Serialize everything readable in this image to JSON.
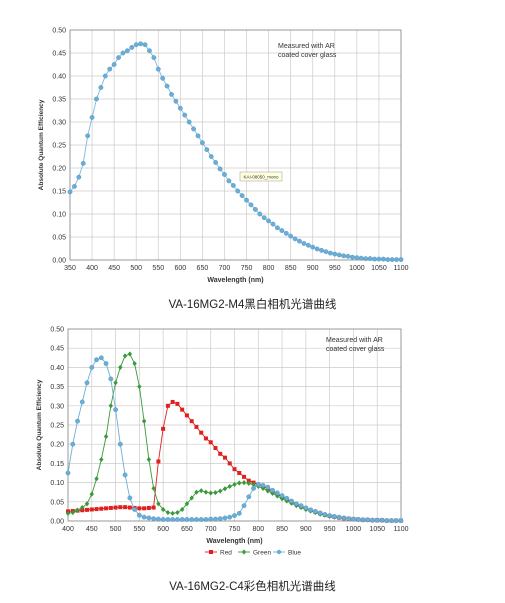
{
  "captions": [
    "VA-16MG2-M4黑白相机光谱曲线",
    "VA-16MG2-C4彩色相机光谱曲线"
  ],
  "colors": {
    "red": "#e02020",
    "green": "#3a9a3a",
    "blue": "#6aaed6",
    "grid": "#cccccc",
    "line": "#7fb6dd"
  },
  "chart_data": [
    {
      "type": "line",
      "title": "",
      "xlabel": "Wavelength (nm)",
      "ylabel": "Absolute Quantum Efficiency",
      "xlim": [
        350,
        1100
      ],
      "ylim": [
        0,
        0.5
      ],
      "xticks": [
        "350",
        "400",
        "450",
        "500",
        "550",
        "600",
        "650",
        "700",
        "750",
        "800",
        "850",
        "900",
        "950",
        "1000",
        "1050",
        "1100"
      ],
      "yticks": [
        "0.00",
        "0.05",
        "0.10",
        "0.15",
        "0.20",
        "0.25",
        "0.30",
        "0.35",
        "0.40",
        "0.45",
        "0.50"
      ],
      "grid": true,
      "annotation": [
        "Measured with AR",
        "coated cover glass"
      ],
      "label_box": "KAI-08050_mono",
      "series": [
        {
          "x": [
            350,
            360,
            370,
            380,
            390,
            400,
            410,
            420,
            430,
            440,
            450,
            460,
            470,
            480,
            490,
            500,
            510,
            520,
            530,
            540,
            550,
            560,
            570,
            580,
            590,
            600,
            610,
            620,
            630,
            640,
            650,
            660,
            670,
            680,
            690,
            700,
            710,
            720,
            730,
            740,
            750,
            760,
            770,
            780,
            790,
            800,
            810,
            820,
            830,
            840,
            850,
            860,
            870,
            880,
            890,
            900,
            910,
            920,
            930,
            940,
            950,
            960,
            970,
            980,
            990,
            1000,
            1010,
            1020,
            1030,
            1040,
            1050,
            1060,
            1070,
            1080,
            1090,
            1100
          ],
          "values": [
            0.148,
            0.16,
            0.18,
            0.21,
            0.27,
            0.31,
            0.35,
            0.375,
            0.4,
            0.415,
            0.425,
            0.44,
            0.45,
            0.455,
            0.462,
            0.468,
            0.47,
            0.468,
            0.455,
            0.44,
            0.415,
            0.395,
            0.378,
            0.36,
            0.345,
            0.33,
            0.315,
            0.3,
            0.285,
            0.27,
            0.255,
            0.24,
            0.225,
            0.212,
            0.198,
            0.186,
            0.172,
            0.162,
            0.15,
            0.14,
            0.13,
            0.12,
            0.11,
            0.1,
            0.092,
            0.085,
            0.078,
            0.07,
            0.064,
            0.058,
            0.052,
            0.046,
            0.041,
            0.036,
            0.032,
            0.028,
            0.024,
            0.021,
            0.018,
            0.015,
            0.013,
            0.011,
            0.009,
            0.008,
            0.006,
            0.005,
            0.004,
            0.003,
            0.003,
            0.002,
            0.002,
            0.002,
            0.001,
            0.001,
            0.001,
            0.001
          ]
        }
      ]
    },
    {
      "type": "line",
      "title": "",
      "xlabel": "Wavelength (nm)",
      "ylabel": "Absolute Quantum Efficiency",
      "xlim": [
        400,
        1100
      ],
      "ylim": [
        0,
        0.5
      ],
      "xticks": [
        "400",
        "450",
        "500",
        "550",
        "600",
        "650",
        "700",
        "750",
        "800",
        "850",
        "900",
        "950",
        "1000",
        "1050",
        "1100"
      ],
      "yticks": [
        "0.00",
        "0.05",
        "0.10",
        "0.15",
        "0.20",
        "0.25",
        "0.30",
        "0.35",
        "0.40",
        "0.45",
        "0.50"
      ],
      "grid": true,
      "annotation": [
        "Measured with AR",
        "coated cover glass"
      ],
      "legend": [
        "Red",
        "Green",
        "Blue"
      ],
      "legend_position": "bottom",
      "series": [
        {
          "name": "Red",
          "x": [
            400,
            410,
            420,
            430,
            440,
            450,
            460,
            470,
            480,
            490,
            500,
            510,
            520,
            530,
            540,
            550,
            560,
            570,
            580,
            590,
            600,
            610,
            620,
            630,
            640,
            650,
            660,
            670,
            680,
            690,
            700,
            710,
            720,
            730,
            740,
            750,
            760,
            770,
            780,
            790,
            800,
            810,
            820,
            830,
            840,
            850,
            860,
            870,
            880,
            890,
            900,
            910,
            920,
            930,
            940,
            950,
            960,
            970,
            980,
            990,
            1000,
            1010,
            1020,
            1030,
            1040,
            1050,
            1060,
            1070,
            1080,
            1090,
            1100
          ],
          "values": [
            0.025,
            0.026,
            0.027,
            0.028,
            0.029,
            0.03,
            0.031,
            0.032,
            0.033,
            0.034,
            0.035,
            0.036,
            0.036,
            0.035,
            0.034,
            0.033,
            0.033,
            0.034,
            0.035,
            0.155,
            0.24,
            0.3,
            0.31,
            0.305,
            0.29,
            0.275,
            0.26,
            0.245,
            0.23,
            0.215,
            0.205,
            0.19,
            0.175,
            0.165,
            0.15,
            0.135,
            0.125,
            0.115,
            0.105,
            0.1,
            0.095,
            0.09,
            0.084,
            0.076,
            0.07,
            0.063,
            0.056,
            0.05,
            0.044,
            0.038,
            0.033,
            0.028,
            0.024,
            0.02,
            0.016,
            0.013,
            0.011,
            0.009,
            0.007,
            0.006,
            0.005,
            0.004,
            0.003,
            0.003,
            0.002,
            0.002,
            0.002,
            0.001,
            0.001,
            0.001,
            0.001
          ]
        },
        {
          "name": "Green",
          "x": [
            400,
            410,
            420,
            430,
            440,
            450,
            460,
            470,
            480,
            490,
            500,
            510,
            520,
            530,
            540,
            550,
            560,
            570,
            580,
            590,
            600,
            610,
            620,
            630,
            640,
            650,
            660,
            670,
            680,
            690,
            700,
            710,
            720,
            730,
            740,
            750,
            760,
            770,
            780,
            790,
            800,
            810,
            820,
            830,
            840,
            850,
            860,
            870,
            880,
            890,
            900,
            910,
            920,
            930,
            940,
            950,
            960,
            970,
            980,
            990,
            1000,
            1010,
            1020,
            1030,
            1040,
            1050,
            1060,
            1070,
            1080,
            1090,
            1100
          ],
          "values": [
            0.02,
            0.022,
            0.028,
            0.035,
            0.045,
            0.07,
            0.11,
            0.16,
            0.22,
            0.3,
            0.36,
            0.4,
            0.43,
            0.435,
            0.41,
            0.35,
            0.26,
            0.16,
            0.085,
            0.045,
            0.03,
            0.022,
            0.02,
            0.022,
            0.03,
            0.045,
            0.06,
            0.075,
            0.079,
            0.075,
            0.073,
            0.074,
            0.078,
            0.084,
            0.09,
            0.095,
            0.099,
            0.1,
            0.098,
            0.095,
            0.09,
            0.085,
            0.078,
            0.072,
            0.065,
            0.058,
            0.052,
            0.046,
            0.04,
            0.035,
            0.03,
            0.026,
            0.022,
            0.018,
            0.015,
            0.012,
            0.01,
            0.008,
            0.007,
            0.006,
            0.005,
            0.004,
            0.003,
            0.003,
            0.002,
            0.002,
            0.002,
            0.001,
            0.001,
            0.001,
            0.001
          ]
        },
        {
          "name": "Blue",
          "x": [
            400,
            410,
            420,
            430,
            440,
            450,
            460,
            470,
            480,
            490,
            500,
            510,
            520,
            530,
            540,
            550,
            560,
            570,
            580,
            590,
            600,
            610,
            620,
            630,
            640,
            650,
            660,
            670,
            680,
            690,
            700,
            710,
            720,
            730,
            740,
            750,
            760,
            770,
            780,
            790,
            800,
            810,
            820,
            830,
            840,
            850,
            860,
            870,
            880,
            890,
            900,
            910,
            920,
            930,
            940,
            950,
            960,
            970,
            980,
            990,
            1000,
            1010,
            1020,
            1030,
            1040,
            1050,
            1060,
            1070,
            1080,
            1090,
            1100
          ],
          "values": [
            0.125,
            0.2,
            0.26,
            0.31,
            0.36,
            0.4,
            0.42,
            0.425,
            0.41,
            0.37,
            0.29,
            0.2,
            0.12,
            0.06,
            0.03,
            0.015,
            0.01,
            0.008,
            0.006,
            0.005,
            0.004,
            0.004,
            0.004,
            0.004,
            0.004,
            0.004,
            0.004,
            0.004,
            0.004,
            0.004,
            0.005,
            0.005,
            0.006,
            0.008,
            0.01,
            0.014,
            0.02,
            0.04,
            0.063,
            0.085,
            0.095,
            0.093,
            0.088,
            0.08,
            0.073,
            0.066,
            0.059,
            0.052,
            0.045,
            0.04,
            0.034,
            0.029,
            0.025,
            0.021,
            0.017,
            0.014,
            0.012,
            0.01,
            0.008,
            0.006,
            0.005,
            0.004,
            0.003,
            0.003,
            0.002,
            0.002,
            0.002,
            0.001,
            0.001,
            0.001,
            0.001
          ]
        }
      ]
    }
  ]
}
